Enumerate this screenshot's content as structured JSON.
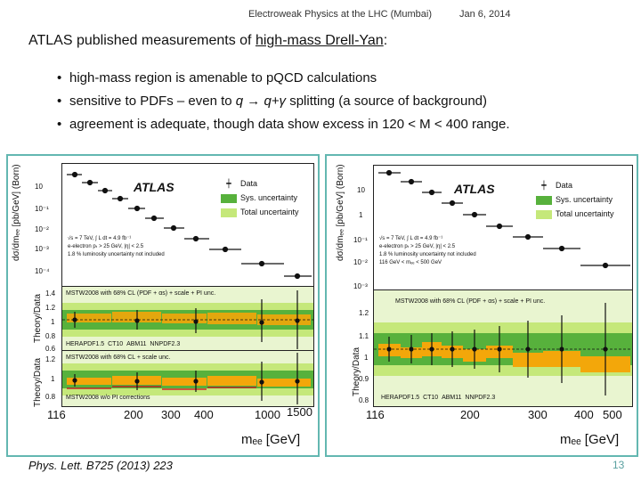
{
  "header": {
    "talk": "Electroweak Physics at the LHC (Mumbai)",
    "date": "Jan 6, 2014"
  },
  "slide": {
    "title_prefix": "ATLAS published measurements of ",
    "title_link": "high-mass Drell-Yan",
    "title_suffix": ":",
    "bullets": [
      {
        "text": "high-mass region is amenable to pQCD calculations"
      },
      {
        "pre": "sensitive to PDFs – even to ",
        "formula": "q → q+γ",
        "post": "  splitting (a source of background)"
      },
      {
        "text": "agreement is adequate, though data show excess in  120 < M < 400 range."
      }
    ]
  },
  "left_plot": {
    "atlas": "ATLAS",
    "legend": [
      "Data",
      "Sys. uncertainty",
      "Total uncertainty"
    ],
    "notes": [
      "√s = 7 TeV, ∫ L dt = 4.9 fb⁻¹",
      "e-electron pₜ > 25 GeV, |η| < 2.5",
      "1.8 % luminosity uncertainty not included"
    ],
    "ylabel": "dσ/dmₑₑ [pb/GeV] (Born)",
    "ratio_label": "Theory/Data",
    "ratio_label2": "Theory/Data",
    "ratio1": "MSTW2008 with 68% CL (PDF + αs) + scale + PI unc.",
    "ratio1_legend": [
      "HERAPDF1.5",
      "CT10",
      "ABM11",
      "NNPDF2.3"
    ],
    "ratio2": "MSTW2008 with 68% CL + scale unc.",
    "ratio2_note": "MSTW2008 w/o PI corrections",
    "yticks": [
      "10",
      "10⁻¹",
      "10⁻²",
      "10⁻³",
      "10⁻⁴",
      "1.4",
      "1.2",
      "1",
      "0.8",
      "0.6",
      "1.2",
      "1",
      "0.8"
    ],
    "xticks": [
      "116",
      "200",
      "300",
      "400",
      "1000",
      "1500"
    ],
    "xlabel": "mₑₑ [GeV]"
  },
  "right_plot": {
    "atlas": "ATLAS",
    "legend": [
      "Data",
      "Sys. uncertainty",
      "Total uncertainty"
    ],
    "notes": [
      "√s = 7 TeV, ∫ L dt = 4.9 fb⁻¹",
      "e-electron pₜ > 25 GeV, |η| < 2.5",
      "1.8 % luminosity uncertainty not included",
      "116 GeV < mₑₑ < 500 GeV"
    ],
    "ylabel": "dσ/dmₑₑ [pb/GeV] (Born)",
    "ratio_label": "Theory/Data",
    "ratio1": "MSTW2008 with 68% CL (PDF + αs) + scale + PI unc.",
    "ratio1_legend": [
      "HERAPDF1.5",
      "CT10",
      "ABM11",
      "NNPDF2.3"
    ],
    "yticks": [
      "10",
      "1",
      "10⁻¹",
      "10⁻²",
      "10⁻³",
      "1.2",
      "1.1",
      "1",
      "0.9",
      "0.8"
    ],
    "xticks": [
      "116",
      "200",
      "300",
      "400",
      "500"
    ],
    "xlabel": "mₑₑ [GeV]"
  },
  "footer": {
    "citation": "Phys. Lett. B725 (2013) 223",
    "page": "13"
  },
  "colors": {
    "accent": "#63b7b1",
    "sys": "#57b13c",
    "total": "#c5e87a",
    "theory": "#f3a70a",
    "data": "#111111"
  }
}
